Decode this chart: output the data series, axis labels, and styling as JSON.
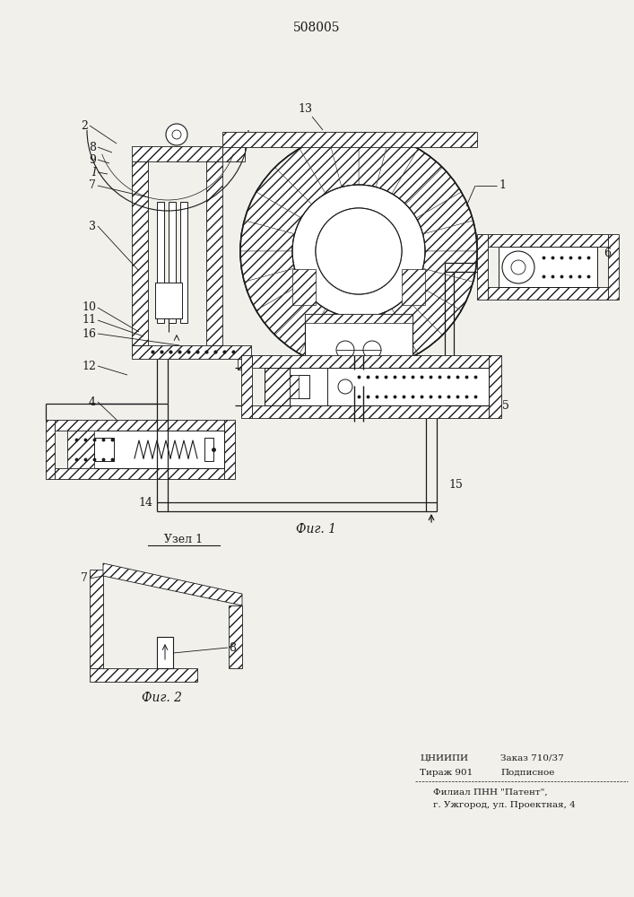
{
  "title": "508005",
  "fig1_caption": "Фиг. 1",
  "fig2_caption": "Фиг. 2",
  "fig2_title": "Узел 1",
  "footer_line1a": "ЦНИИПИ",
  "footer_line1b": "Заказ 710/37",
  "footer_line2a": "Тираж 901",
  "footer_line2b": "Подписное",
  "footer_line3": "Филиал ПНН \"Патент\",",
  "footer_line4": "г. Ужгород, ул. Проектная, 4",
  "bg_color": "#f2f0eb",
  "line_color": "#1a1a1a"
}
